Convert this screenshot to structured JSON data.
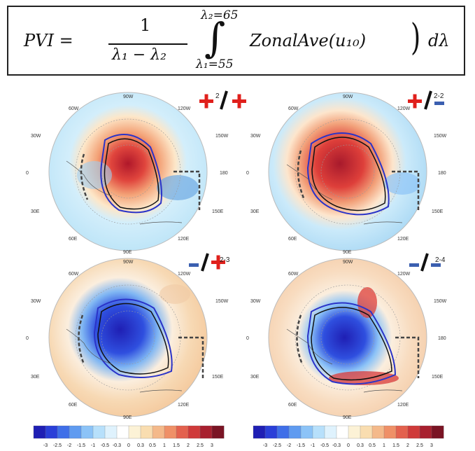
{
  "formula": {
    "lhs": "PVI =",
    "numerator": "1",
    "denominator": "λ₁ − λ₂",
    "upper_limit": "λ₂=65",
    "lower_limit": "λ₁=55",
    "integral": "∫",
    "integrand": "ZonalAve(u₁₀)",
    "differential": "dλ"
  },
  "panels": [
    {
      "tag": "2",
      "signs": "+ / +",
      "scheme": "warm"
    },
    {
      "tag": "2-2",
      "signs": "+ / −",
      "scheme": "warm"
    },
    {
      "tag": "2-3",
      "signs": "− / +",
      "scheme": "cold"
    },
    {
      "tag": "2-4",
      "signs": "− / −",
      "scheme": "cold-mixed"
    }
  ],
  "longitude_labels": {
    "top": "90W",
    "top_left": "60W",
    "top_right": "120W",
    "left_upper": "30W",
    "right_upper": "150W",
    "left": "0",
    "right": "180",
    "left_lower": "30E",
    "right_lower": "150E",
    "bottom_left": "60E",
    "bottom_right": "120E",
    "bottom": "90E"
  },
  "colorbar": {
    "ticks": [
      "-3",
      "-2.5",
      "-2",
      "-1.5",
      "-1",
      "-0.5",
      "-0.3",
      "0",
      "0.3",
      "0.5",
      "1",
      "1.5",
      "2",
      "2.5",
      "3"
    ],
    "colors": [
      "#1f1fb4",
      "#2a3fd8",
      "#3f6fe8",
      "#5f9bf0",
      "#8cc3f7",
      "#b7e0fb",
      "#dff2fd",
      "#ffffff",
      "#fcf2d6",
      "#f9ddb0",
      "#f4b98a",
      "#ef9067",
      "#e3614e",
      "#cf3a3a",
      "#a8202f",
      "#7a1424"
    ]
  },
  "colors": {
    "plus_sign": "#e0201c",
    "minus_sign": "#3b5fb0",
    "slash": "#111111",
    "contour_blue": "#2a33c8",
    "contour_black": "#111111"
  }
}
